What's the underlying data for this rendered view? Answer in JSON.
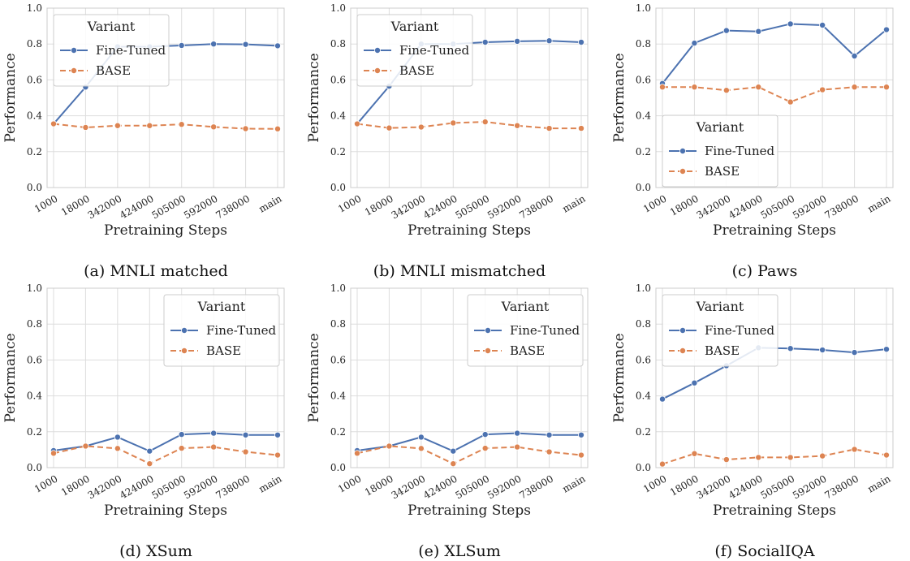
{
  "chart_data": [
    {
      "type": "line",
      "caption": "(a) MNLI matched",
      "xlabel": "Pretraining Steps",
      "ylabel": "Performance",
      "ylim": [
        0,
        1.0
      ],
      "yticks": [
        "0.0",
        "0.2",
        "0.4",
        "0.6",
        "0.8",
        "1.0"
      ],
      "categories": [
        "1000",
        "18000",
        "342000",
        "424000",
        "505000",
        "592000",
        "738000",
        "main"
      ],
      "legend": {
        "title": "Variant",
        "placement": "upper-left"
      },
      "grid": true,
      "series": [
        {
          "name": "Fine-Tuned",
          "values": [
            0.355,
            0.56,
            0.785,
            0.785,
            0.792,
            0.8,
            0.798,
            0.79
          ]
        },
        {
          "name": "BASE",
          "values": [
            0.355,
            0.335,
            0.345,
            0.345,
            0.352,
            0.338,
            0.328,
            0.327
          ]
        }
      ]
    },
    {
      "type": "line",
      "caption": "(b) MNLI mismatched",
      "xlabel": "Pretraining Steps",
      "ylabel": "Performance",
      "ylim": [
        0,
        1.0
      ],
      "yticks": [
        "0.0",
        "0.2",
        "0.4",
        "0.6",
        "0.8",
        "1.0"
      ],
      "categories": [
        "1000",
        "18000",
        "342000",
        "424000",
        "505000",
        "592000",
        "738000",
        "main"
      ],
      "legend": {
        "title": "Variant",
        "placement": "upper-left"
      },
      "grid": true,
      "series": [
        {
          "name": "Fine-Tuned",
          "values": [
            0.355,
            0.565,
            0.8,
            0.8,
            0.81,
            0.815,
            0.818,
            0.81
          ]
        },
        {
          "name": "BASE",
          "values": [
            0.355,
            0.332,
            0.337,
            0.36,
            0.366,
            0.345,
            0.33,
            0.33
          ]
        }
      ]
    },
    {
      "type": "line",
      "caption": "(c) Paws",
      "xlabel": "Pretraining Steps",
      "ylabel": "Performance",
      "ylim": [
        0,
        1.0
      ],
      "yticks": [
        "0.0",
        "0.2",
        "0.4",
        "0.6",
        "0.8",
        "1.0"
      ],
      "categories": [
        "1000",
        "18000",
        "342000",
        "424000",
        "505000",
        "592000",
        "738000",
        "main"
      ],
      "legend": {
        "title": "Variant",
        "placement": "center-left"
      },
      "grid": true,
      "series": [
        {
          "name": "Fine-Tuned",
          "values": [
            0.58,
            0.805,
            0.875,
            0.87,
            0.912,
            0.905,
            0.733,
            0.88
          ]
        },
        {
          "name": "BASE",
          "values": [
            0.56,
            0.56,
            0.542,
            0.56,
            0.477,
            0.545,
            0.56,
            0.56
          ]
        }
      ]
    },
    {
      "type": "line",
      "caption": "(d) XSum",
      "xlabel": "Pretraining Steps",
      "ylabel": "Performance",
      "ylim": [
        0,
        1.0
      ],
      "yticks": [
        "0.0",
        "0.2",
        "0.4",
        "0.6",
        "0.8",
        "1.0"
      ],
      "categories": [
        "1000",
        "18000",
        "342000",
        "424000",
        "505000",
        "592000",
        "738000",
        "main"
      ],
      "legend": {
        "title": "Variant",
        "placement": "upper-right"
      },
      "grid": true,
      "series": [
        {
          "name": "Fine-Tuned",
          "values": [
            0.095,
            0.12,
            0.17,
            0.092,
            0.185,
            0.192,
            0.182,
            0.182
          ]
        },
        {
          "name": "BASE",
          "values": [
            0.08,
            0.12,
            0.107,
            0.022,
            0.108,
            0.115,
            0.088,
            0.07
          ]
        }
      ]
    },
    {
      "type": "line",
      "caption": "(e) XLSum",
      "xlabel": "Pretraining Steps",
      "ylabel": "Performance",
      "ylim": [
        0,
        1.0
      ],
      "yticks": [
        "0.0",
        "0.2",
        "0.4",
        "0.6",
        "0.8",
        "1.0"
      ],
      "categories": [
        "1000",
        "18000",
        "342000",
        "424000",
        "505000",
        "592000",
        "738000",
        "main"
      ],
      "legend": {
        "title": "Variant",
        "placement": "upper-right"
      },
      "grid": true,
      "series": [
        {
          "name": "Fine-Tuned",
          "values": [
            0.095,
            0.12,
            0.17,
            0.092,
            0.185,
            0.192,
            0.182,
            0.182
          ]
        },
        {
          "name": "BASE",
          "values": [
            0.08,
            0.12,
            0.107,
            0.022,
            0.108,
            0.115,
            0.088,
            0.07
          ]
        }
      ]
    },
    {
      "type": "line",
      "caption": "(f) SocialIQA",
      "xlabel": "Pretraining Steps",
      "ylabel": "Performance",
      "ylim": [
        0,
        1.0
      ],
      "yticks": [
        "0.0",
        "0.2",
        "0.4",
        "0.6",
        "0.8",
        "1.0"
      ],
      "categories": [
        "1000",
        "18000",
        "342000",
        "424000",
        "505000",
        "592000",
        "738000",
        "main"
      ],
      "legend": {
        "title": "Variant",
        "placement": "upper-left"
      },
      "grid": true,
      "series": [
        {
          "name": "Fine-Tuned",
          "values": [
            0.382,
            0.472,
            0.568,
            0.668,
            0.664,
            0.656,
            0.642,
            0.66
          ]
        },
        {
          "name": "BASE",
          "values": [
            0.02,
            0.078,
            0.045,
            0.057,
            0.057,
            0.065,
            0.102,
            0.07
          ]
        }
      ]
    }
  ],
  "colors": {
    "fine_tuned": "#4c72b0",
    "base": "#dd8452",
    "grid": "#dddddd",
    "spine": "#cccccc"
  }
}
